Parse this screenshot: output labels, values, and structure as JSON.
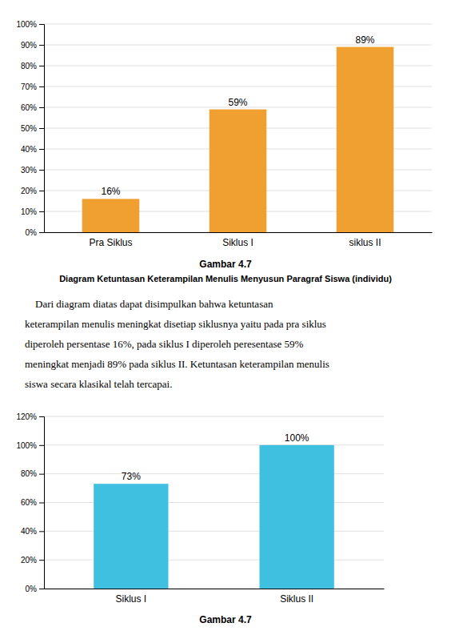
{
  "chart_data": [
    {
      "type": "bar",
      "title": "Gambar 4.7",
      "subtitle": "Diagram Ketuntasan Keterampilan Menulis Menyusun Paragraf Siswa (individu)",
      "categories": [
        "Pra Siklus",
        "Siklus I",
        "siklus II"
      ],
      "values": [
        16,
        59,
        89
      ],
      "value_labels": [
        "16%",
        "59%",
        "89%"
      ],
      "data_labels": true,
      "color": "#F0A030",
      "ylim": [
        0,
        100
      ],
      "yticks": [
        {
          "value": 0,
          "label": "0%"
        },
        {
          "value": 10,
          "label": "10%"
        },
        {
          "value": 20,
          "label": "20%"
        },
        {
          "value": 30,
          "label": "30%"
        },
        {
          "value": 40,
          "label": "40%"
        },
        {
          "value": 50,
          "label": "50%"
        },
        {
          "value": 60,
          "label": "60%"
        },
        {
          "value": 70,
          "label": "70%"
        },
        {
          "value": 80,
          "label": "80%"
        },
        {
          "value": 90,
          "label": "90%"
        },
        {
          "value": 100,
          "label": "100%"
        }
      ],
      "grid": true
    },
    {
      "type": "bar",
      "title": "Gambar 4.7",
      "categories": [
        "Siklus I",
        "Siklus II"
      ],
      "values": [
        73,
        100
      ],
      "value_labels": [
        "73%",
        "100%"
      ],
      "data_labels": true,
      "color": "#40C0E0",
      "ylim": [
        0,
        120
      ],
      "yticks": [
        {
          "value": 0,
          "label": "0%"
        },
        {
          "value": 20,
          "label": "20%"
        },
        {
          "value": 40,
          "label": "40%"
        },
        {
          "value": 60,
          "label": "60%"
        },
        {
          "value": 80,
          "label": "80%"
        },
        {
          "value": 100,
          "label": "100%"
        },
        {
          "value": 120,
          "label": "120%"
        }
      ],
      "grid": true
    }
  ],
  "paragraph": [
    "    Dari diagram diatas dapat disimpulkan bahwa ketuntasan",
    "keterampilan menulis meningkat disetiap siklusnya yaitu pada pra siklus",
    "diperoleh persentase 16%, pada siklus I diperoleh peresentase 59%",
    "meningkat menjadi 89% pada siklus II. Ketuntasan keterampilan menulis",
    "siswa secara klasikal telah tercapai."
  ]
}
